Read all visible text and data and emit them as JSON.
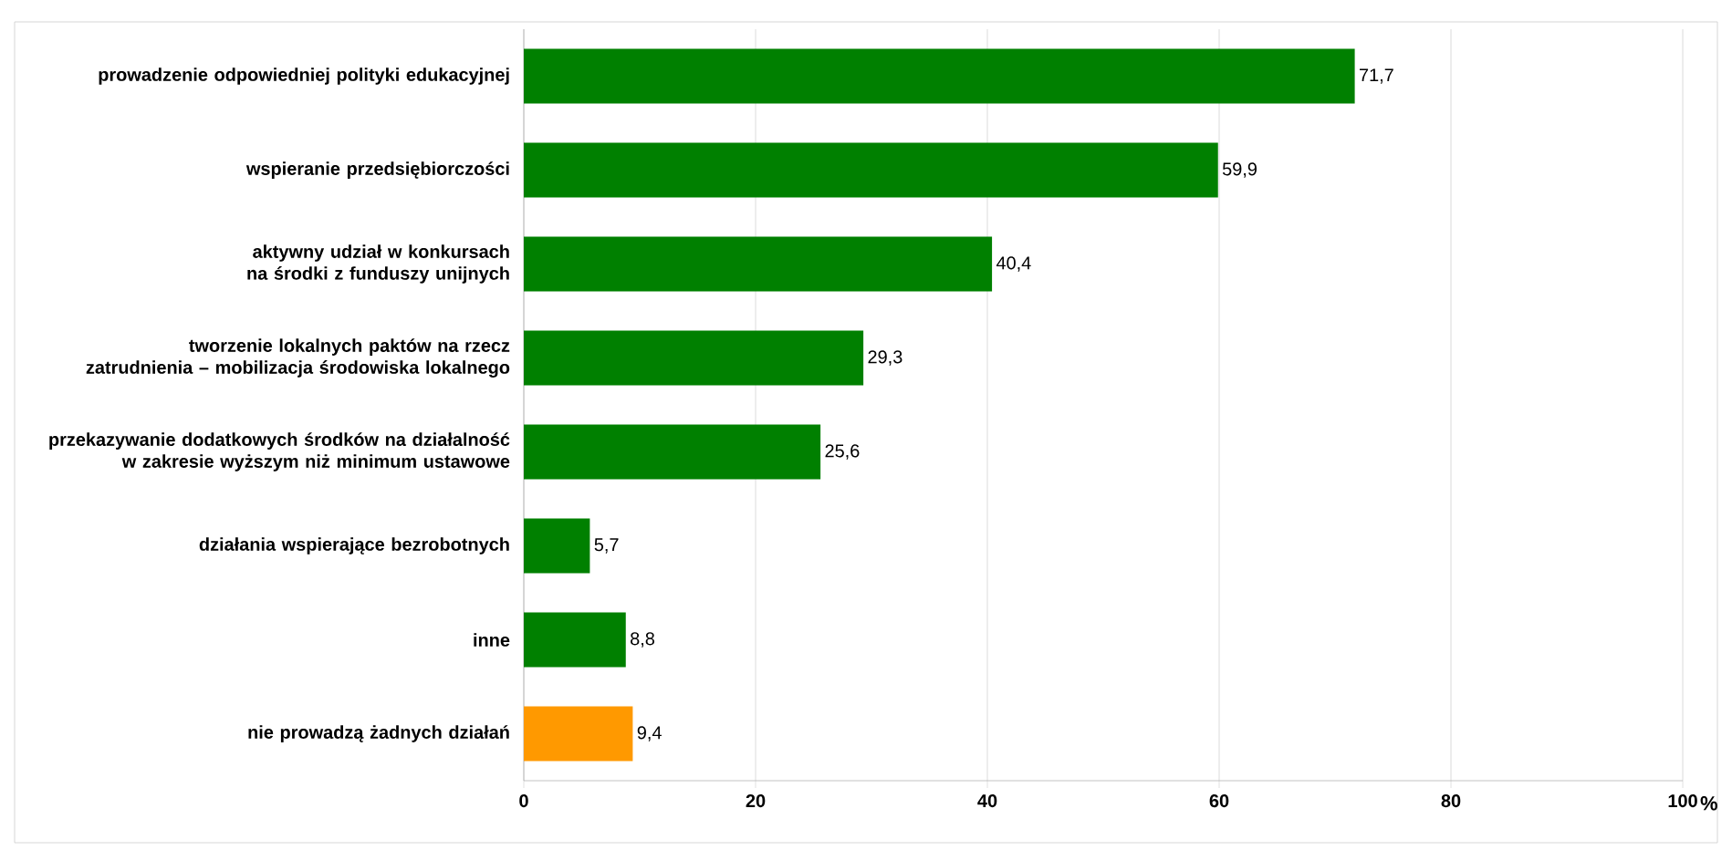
{
  "chart_data": {
    "type": "bar",
    "orientation": "horizontal",
    "xlabel": "%",
    "categories": [
      "prowadzenie odpowiedniej polityki edukacyjnej",
      "wspieranie przedsiębiorczości",
      "aktywny udział w konkursach na środki z funduszy unijnych",
      "tworzenie lokalnych paktów na rzecz zatrudnienia – mobilizacja środowiska lokalnego",
      "przekazywanie dodatkowych środków na działalność w zakresie wyższym niż minimum ustawowe",
      "działania wspierające bezrobotnych",
      "inne",
      "nie prowadzą żadnych działań"
    ],
    "values": [
      71.7,
      59.9,
      40.4,
      29.3,
      25.6,
      5.7,
      8.8,
      9.4
    ],
    "value_labels": [
      "71,7",
      "59,9",
      "40,4",
      "29,3",
      "25,6",
      "5,7",
      "8,8",
      "9,4"
    ],
    "colors": [
      "#008000",
      "#008000",
      "#008000",
      "#008000",
      "#008000",
      "#008000",
      "#008000",
      "#ff9900"
    ],
    "xlim": [
      0,
      100
    ],
    "xticks": [
      0,
      20,
      40,
      60,
      80,
      100
    ],
    "grid": "x"
  }
}
